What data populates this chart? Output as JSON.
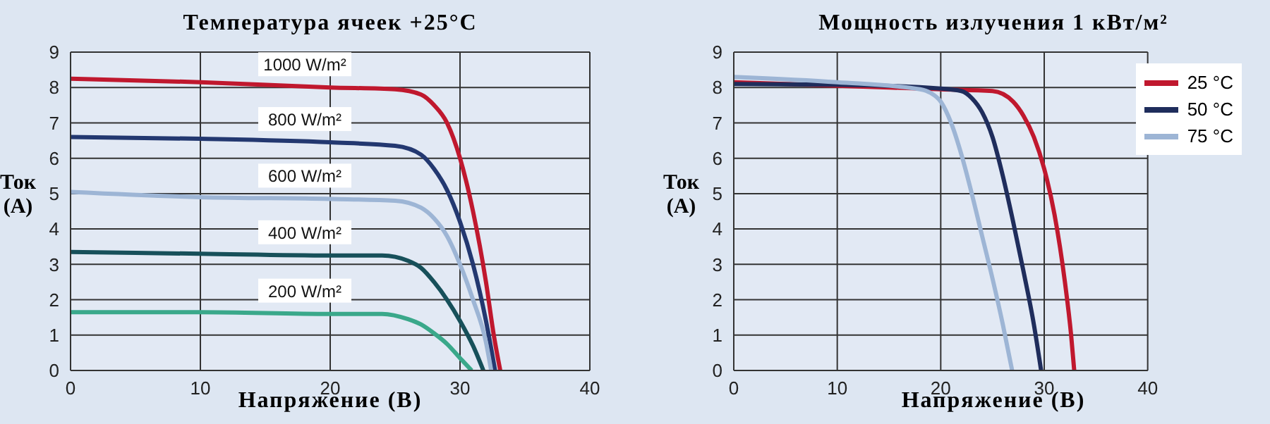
{
  "chart_data": [
    {
      "type": "line",
      "title": "Температура ячеек +25°C",
      "xlabel": "Напряжение (В)",
      "ylabel": "Ток (А)",
      "xlim": [
        0,
        40
      ],
      "ylim": [
        0,
        9
      ],
      "xticks": [
        0,
        10,
        20,
        30,
        40
      ],
      "yticks": [
        0,
        1,
        2,
        3,
        4,
        5,
        6,
        7,
        8,
        9
      ],
      "grid": true,
      "legend": false,
      "marker": "none",
      "series": [
        {
          "name": "1000 W/m²",
          "color": "#c0182e",
          "x": [
            0,
            10,
            20,
            25,
            27,
            28,
            29,
            30,
            31,
            32,
            32.6,
            33.1
          ],
          "values": [
            8.25,
            8.15,
            8.0,
            7.95,
            7.8,
            7.5,
            7.0,
            6.0,
            4.5,
            2.5,
            1.0,
            0
          ]
        },
        {
          "name": "800 W/m²",
          "color": "#233870",
          "x": [
            0,
            10,
            20,
            25,
            27,
            28,
            29,
            30,
            31,
            32,
            32.7
          ],
          "values": [
            6.6,
            6.55,
            6.45,
            6.35,
            6.1,
            5.7,
            5.1,
            4.2,
            3.0,
            1.4,
            0
          ]
        },
        {
          "name": "600 W/m²",
          "color": "#9db5d5",
          "x": [
            0,
            10,
            20,
            25,
            27,
            28,
            29,
            30,
            31,
            32,
            32.4
          ],
          "values": [
            5.05,
            4.9,
            4.85,
            4.8,
            4.6,
            4.3,
            3.8,
            3.0,
            2.0,
            0.8,
            0
          ]
        },
        {
          "name": "400 W/m²",
          "color": "#17505a",
          "x": [
            0,
            10,
            20,
            24,
            26,
            27,
            28,
            29,
            30,
            31,
            31.8
          ],
          "values": [
            3.35,
            3.3,
            3.25,
            3.25,
            3.1,
            2.9,
            2.5,
            2.0,
            1.4,
            0.7,
            0
          ]
        },
        {
          "name": "200 W/m²",
          "color": "#3aa88a",
          "x": [
            0,
            10,
            20,
            24,
            26,
            27,
            28,
            29,
            30,
            30.9
          ],
          "values": [
            1.65,
            1.65,
            1.6,
            1.6,
            1.45,
            1.3,
            1.05,
            0.75,
            0.35,
            0
          ]
        }
      ]
    },
    {
      "type": "line",
      "title": "Мощность излучения 1 кВт/м²",
      "xlabel": "Напряжение (В)",
      "ylabel": "Ток (А)",
      "xlim": [
        0,
        40
      ],
      "ylim": [
        0,
        9
      ],
      "xticks": [
        0,
        10,
        20,
        30,
        40
      ],
      "yticks": [
        0,
        1,
        2,
        3,
        4,
        5,
        6,
        7,
        8,
        9
      ],
      "grid": true,
      "legend": "top right",
      "marker": "none",
      "series": [
        {
          "name": "25 °C",
          "color": "#c0182e",
          "x": [
            0,
            10,
            20,
            25,
            27,
            28,
            29,
            30,
            31,
            32,
            32.6,
            32.9
          ],
          "values": [
            8.15,
            8.05,
            7.95,
            7.9,
            7.6,
            7.2,
            6.6,
            5.7,
            4.4,
            2.5,
            1.0,
            0
          ]
        },
        {
          "name": "50 °C",
          "color": "#1f2d5c",
          "x": [
            0,
            10,
            20,
            22,
            23,
            24,
            25,
            26,
            27,
            28,
            29,
            29.7
          ],
          "values": [
            8.1,
            8.08,
            7.97,
            7.9,
            7.7,
            7.3,
            6.6,
            5.5,
            4.2,
            2.8,
            1.3,
            0
          ]
        },
        {
          "name": "75 °C",
          "color": "#9db5d5",
          "x": [
            0,
            10,
            18,
            19,
            20,
            21,
            22,
            23,
            24,
            25,
            26,
            26.9
          ],
          "values": [
            8.3,
            8.15,
            7.95,
            7.85,
            7.6,
            7.0,
            6.1,
            5.0,
            3.8,
            2.6,
            1.3,
            0
          ]
        }
      ]
    }
  ]
}
